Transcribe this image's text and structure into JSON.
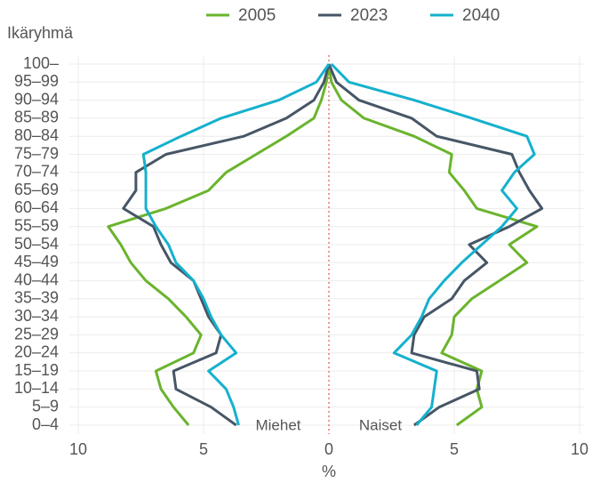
{
  "chart_data": {
    "type": "pyramid-line",
    "ylabel": "Ikäryhmä",
    "xlabel": "%",
    "annotations": [
      "Miehet",
      "Naiset"
    ],
    "categories": [
      "0–4",
      "5–9",
      "10–14",
      "15–19",
      "20–24",
      "25–29",
      "30–34",
      "35–39",
      "40–44",
      "45–49",
      "50–54",
      "55–59",
      "60–64",
      "65–69",
      "70–74",
      "75–79",
      "80–84",
      "85–89",
      "90–94",
      "95–99",
      "100–"
    ],
    "xlim": [
      -10,
      10
    ],
    "xticks": [
      {
        "value": -10,
        "label": "10"
      },
      {
        "value": -5,
        "label": "5"
      },
      0,
      5,
      10
    ],
    "grid": true,
    "legend": "top",
    "series": [
      {
        "name": "2005",
        "color": "#6ab42d",
        "values_men": [
          -5.6,
          -6.2,
          -6.7,
          -6.9,
          -5.4,
          -5.1,
          -5.7,
          -6.4,
          -7.3,
          -7.9,
          -8.3,
          -8.8,
          -6.5,
          -4.8,
          -4.1,
          -2.9,
          -1.7,
          -0.6,
          -0.3,
          -0.1,
          0
        ],
        "values_women": [
          5.1,
          6.1,
          5.9,
          6.1,
          4.5,
          4.9,
          5.0,
          5.7,
          6.8,
          7.9,
          7.2,
          8.3,
          5.9,
          5.4,
          4.8,
          4.9,
          3.4,
          1.4,
          0.5,
          0.1,
          0
        ]
      },
      {
        "name": "2023",
        "color": "#465666",
        "values_men": [
          -3.7,
          -4.7,
          -6.1,
          -6.2,
          -4.5,
          -4.3,
          -4.8,
          -5.1,
          -5.4,
          -6.3,
          -6.7,
          -7.0,
          -8.2,
          -7.7,
          -7.7,
          -6.5,
          -3.4,
          -1.7,
          -0.6,
          -0.2,
          0
        ],
        "values_women": [
          3.4,
          4.4,
          6.0,
          5.9,
          3.3,
          3.4,
          3.8,
          4.9,
          5.4,
          6.3,
          5.6,
          7.2,
          8.5,
          8.0,
          7.6,
          7.3,
          4.3,
          3.3,
          1.2,
          0.3,
          0
        ]
      },
      {
        "name": "2040",
        "color": "#14b1cd",
        "values_men": [
          -3.6,
          -3.8,
          -4.1,
          -4.8,
          -3.7,
          -4.3,
          -4.7,
          -5.0,
          -5.4,
          -6.1,
          -6.4,
          -6.9,
          -7.3,
          -7.3,
          -7.3,
          -7.4,
          -5.9,
          -4.3,
          -2.0,
          -0.5,
          0
        ],
        "values_women": [
          3.5,
          4.1,
          4.2,
          4.3,
          2.6,
          3.3,
          3.7,
          4.0,
          4.6,
          5.3,
          6.1,
          6.9,
          7.5,
          6.9,
          7.4,
          8.2,
          7.9,
          5.7,
          3.4,
          0.8,
          0.1
        ]
      }
    ]
  }
}
